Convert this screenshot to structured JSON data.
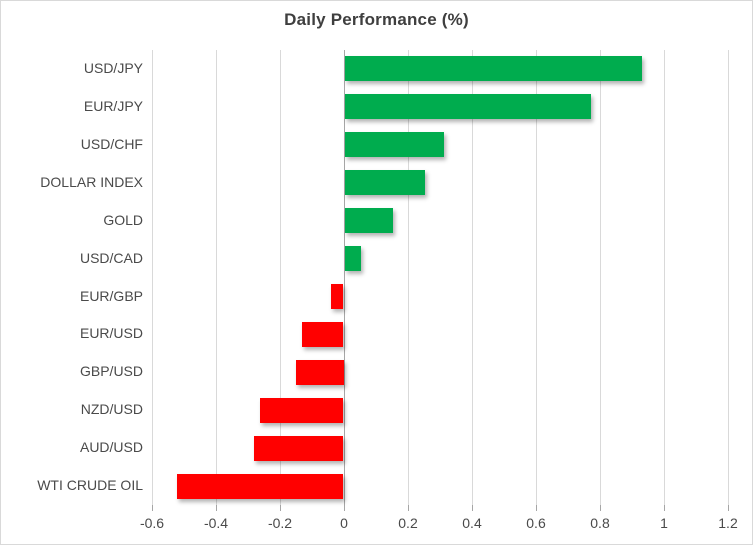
{
  "chart_data": {
    "type": "bar",
    "orientation": "horizontal",
    "title": "Daily Performance (%)",
    "categories": [
      "USD/JPY",
      "EUR/JPY",
      "USD/CHF",
      "DOLLAR INDEX",
      "GOLD",
      "USD/CAD",
      "EUR/GBP",
      "EUR/USD",
      "GBP/USD",
      "NZD/USD",
      "AUD/USD",
      "WTI CRUDE OIL"
    ],
    "values": [
      0.93,
      0.77,
      0.31,
      0.25,
      0.15,
      0.05,
      -0.04,
      -0.13,
      -0.15,
      -0.26,
      -0.28,
      -0.52
    ],
    "xlabel": "",
    "ylabel": "",
    "xlim": [
      -0.6,
      1.2
    ],
    "x_ticks": [
      -0.6,
      -0.4,
      -0.2,
      0,
      0.2,
      0.4,
      0.6,
      0.8,
      1,
      1.2
    ],
    "x_tick_labels": [
      "-0.6",
      "-0.4",
      "-0.2",
      "0",
      "0.2",
      "0.4",
      "0.6",
      "0.8",
      "1",
      "1.2"
    ],
    "grid": true,
    "legend": "none",
    "colors": {
      "positive_bar": "#00AC4E",
      "negative_bar": "#FF0000",
      "gridline": "#D9D9D9",
      "zero_axis_line": "#A6A6A6",
      "tick_mark": "#A6A6A6",
      "axis_label_text": "#4A4A4A",
      "title_text": "#3F3F3F",
      "chart_border": "#D9D9D9",
      "background": "#FFFFFF"
    }
  }
}
